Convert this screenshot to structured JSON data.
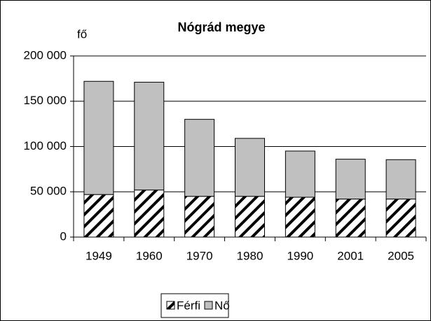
{
  "chart_data": {
    "type": "stacked_bar",
    "title": "Nógrád megye",
    "y_label": "fő",
    "categories": [
      "1949",
      "1960",
      "1970",
      "1980",
      "1990",
      "2001",
      "2005"
    ],
    "series": [
      {
        "name": "Férfi",
        "color": "#ffffff",
        "pattern": "hatch",
        "values": [
          47000,
          52000,
          45000,
          45000,
          44000,
          42000,
          42000
        ]
      },
      {
        "name": "Nő",
        "color": "#c0c0c0",
        "values": [
          125000,
          119000,
          85000,
          64000,
          51000,
          44000,
          43500
        ]
      }
    ],
    "ylim": [
      0,
      200000
    ],
    "yticks": [
      0,
      {
        "value": 50000,
        "label": "50 000"
      },
      {
        "value": 100000,
        "label": "100 000"
      },
      {
        "value": 150000,
        "label": "150 000"
      },
      {
        "value": 200000,
        "label": "200 000"
      }
    ],
    "grid": true,
    "legend": "bottom"
  }
}
